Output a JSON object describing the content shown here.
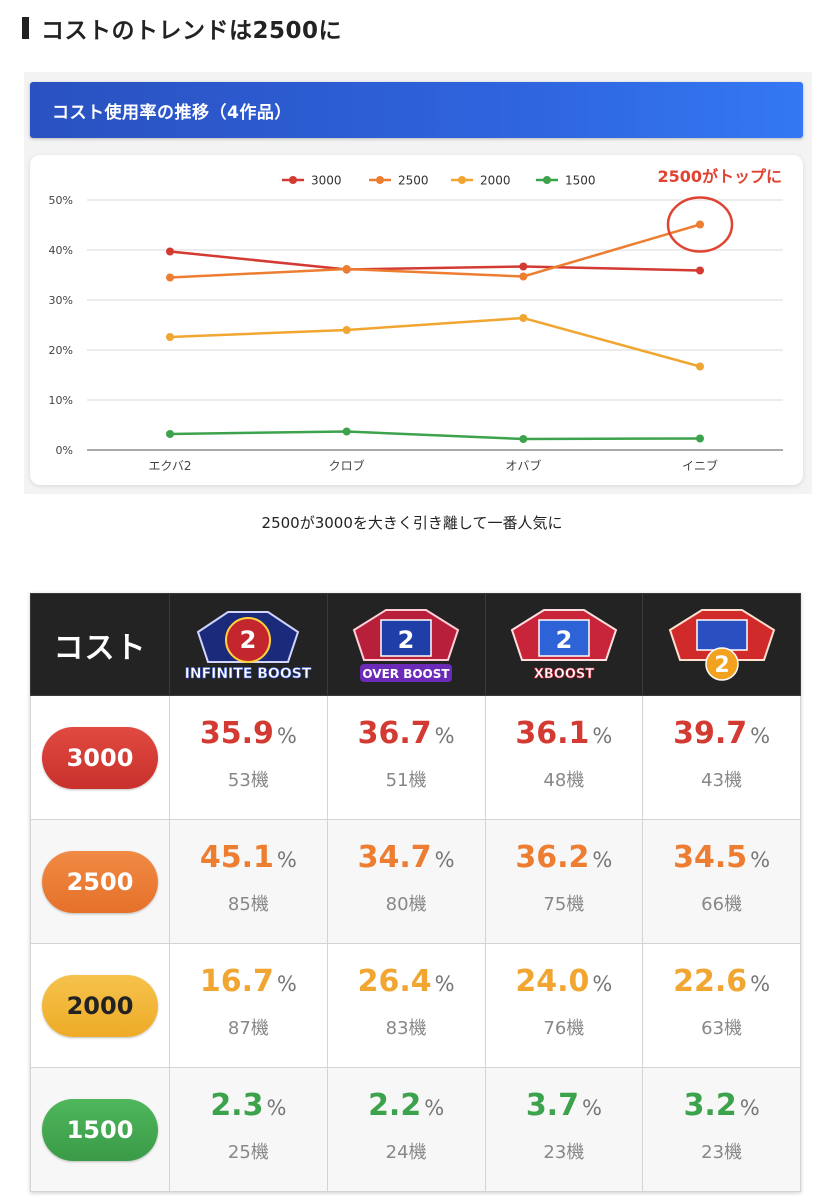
{
  "heading": "コストのトレンドは2500に",
  "chart_title": "コスト使用率の推移（4作品）",
  "caption": "2500が3000を大きく引き離して一番人気に",
  "colors": {
    "3000": "#d23a32",
    "2500": "#ec7d31",
    "2000": "#f0a630",
    "1500": "#3da24c"
  },
  "chart_data": {
    "type": "line",
    "categories": [
      "エクバ2",
      "クロブ",
      "オバブ",
      "イニブ"
    ],
    "series": [
      {
        "name": "3000",
        "values": [
          39.7,
          36.1,
          36.7,
          35.9
        ]
      },
      {
        "name": "2500",
        "values": [
          34.5,
          36.2,
          34.7,
          45.1
        ]
      },
      {
        "name": "2000",
        "values": [
          22.6,
          24.0,
          26.4,
          16.7
        ]
      },
      {
        "name": "1500",
        "values": [
          3.2,
          3.7,
          2.2,
          2.3
        ]
      }
    ],
    "ylim": [
      0,
      50
    ],
    "yticks": [
      "0%",
      "10%",
      "20%",
      "30%",
      "40%",
      "50%"
    ],
    "grid": true,
    "legend_position": "top",
    "annotation": "2500がトップに"
  },
  "table": {
    "cost_header": "コスト",
    "games": [
      {
        "logo_text": "INFINITE BOOST",
        "logo_num": "2"
      },
      {
        "logo_text": "OVER BOOST",
        "logo_num": "2"
      },
      {
        "logo_text": "XBOOST",
        "logo_num": "2"
      },
      {
        "logo_text": "",
        "logo_num": "2"
      }
    ],
    "pct_unit": "%",
    "rows": [
      {
        "cost": "3000",
        "cells": [
          {
            "pct": "35.9",
            "units": "53機"
          },
          {
            "pct": "36.7",
            "units": "51機"
          },
          {
            "pct": "36.1",
            "units": "48機"
          },
          {
            "pct": "39.7",
            "units": "43機"
          }
        ]
      },
      {
        "cost": "2500",
        "cells": [
          {
            "pct": "45.1",
            "units": "85機"
          },
          {
            "pct": "34.7",
            "units": "80機"
          },
          {
            "pct": "36.2",
            "units": "75機"
          },
          {
            "pct": "34.5",
            "units": "66機"
          }
        ]
      },
      {
        "cost": "2000",
        "cells": [
          {
            "pct": "16.7",
            "units": "87機"
          },
          {
            "pct": "26.4",
            "units": "83機"
          },
          {
            "pct": "24.0",
            "units": "76機"
          },
          {
            "pct": "22.6",
            "units": "63機"
          }
        ]
      },
      {
        "cost": "1500",
        "cells": [
          {
            "pct": "2.3",
            "units": "25機"
          },
          {
            "pct": "2.2",
            "units": "24機"
          },
          {
            "pct": "3.7",
            "units": "23機"
          },
          {
            "pct": "3.2",
            "units": "23機"
          }
        ]
      }
    ]
  }
}
